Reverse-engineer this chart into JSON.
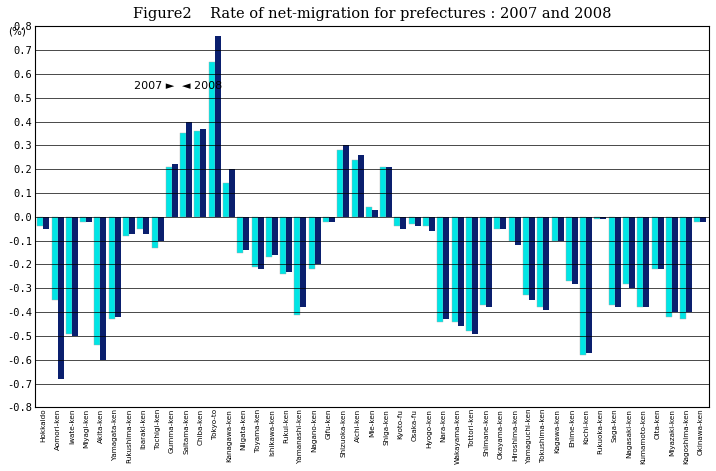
{
  "title": "Figure2    Rate of net-migration for prefectures : 2007 and 2008",
  "ylabel": "(%)",
  "ylim": [
    -0.8,
    0.8
  ],
  "yticks": [
    -0.8,
    -0.7,
    -0.6,
    -0.5,
    -0.4,
    -0.3,
    -0.2,
    -0.1,
    0.0,
    0.1,
    0.2,
    0.3,
    0.4,
    0.5,
    0.6,
    0.7,
    0.8
  ],
  "prefectures": [
    "Hokkaido",
    "Aomori-ken",
    "Iwate-ken",
    "Miyagi-ken",
    "Akita-ken",
    "Yamagata-ken",
    "Fukushima-ken",
    "Ibaraki-ken",
    "Tochigi-ken",
    "Gumma-ken",
    "Saitama-ken",
    "Chiba-ken",
    "Tokyo-to",
    "Kanagawa-ken",
    "Niigata-ken",
    "Toyama-ken",
    "Ishikawa-ken",
    "Fukui-ken",
    "Yamanashi-ken",
    "Nagano-ken",
    "Gifu-ken",
    "Shizuoka-ken",
    "Aichi-ken",
    "Mie-ken",
    "Shiga-ken",
    "Kyoto-fu",
    "Osaka-fu",
    "Hyogo-ken",
    "Nara-ken",
    "Wakayama-ken",
    "Tottori-ken",
    "Shimane-ken",
    "Okayama-ken",
    "Hiroshima-ken",
    "Yamaguchi-ken",
    "Tokushima-ken",
    "Kagawa-ken",
    "Ehime-ken",
    "Kochi-ken",
    "Fukuoka-ken",
    "Saga-ken",
    "Nagasaki-ken",
    "Kumamoto-ken",
    "Oita-ken",
    "Miyazaki-ken",
    "Kagoshima-ken",
    "Okinawa-ken"
  ],
  "values_2007": [
    -0.05,
    -0.68,
    -0.5,
    -0.02,
    -0.6,
    -0.42,
    -0.07,
    -0.07,
    -0.1,
    0.22,
    0.4,
    0.37,
    0.76,
    0.2,
    -0.14,
    -0.22,
    -0.16,
    -0.23,
    -0.38,
    -0.2,
    -0.02,
    0.3,
    0.26,
    0.03,
    0.21,
    -0.05,
    -0.04,
    -0.06,
    -0.43,
    -0.46,
    -0.49,
    -0.38,
    -0.05,
    -0.12,
    -0.35,
    -0.39,
    -0.1,
    -0.28,
    -0.57,
    -0.01,
    -0.38,
    -0.3,
    -0.38,
    -0.22,
    -0.4,
    -0.4,
    -0.02
  ],
  "values_2008": [
    -0.04,
    -0.35,
    -0.49,
    -0.02,
    -0.54,
    -0.43,
    -0.08,
    -0.05,
    -0.13,
    0.21,
    0.35,
    0.36,
    0.65,
    0.14,
    -0.15,
    -0.21,
    -0.17,
    -0.24,
    -0.41,
    -0.22,
    -0.02,
    0.28,
    0.24,
    0.04,
    0.21,
    -0.04,
    -0.03,
    -0.04,
    -0.44,
    -0.44,
    -0.48,
    -0.37,
    -0.05,
    -0.1,
    -0.33,
    -0.38,
    -0.1,
    -0.27,
    -0.58,
    -0.01,
    -0.37,
    -0.28,
    -0.38,
    -0.22,
    -0.42,
    -0.43,
    -0.02
  ],
  "color_2007": "#0a1f6e",
  "color_2008": "#00e5e5",
  "bar_width": 0.42,
  "background_color": "#ffffff"
}
